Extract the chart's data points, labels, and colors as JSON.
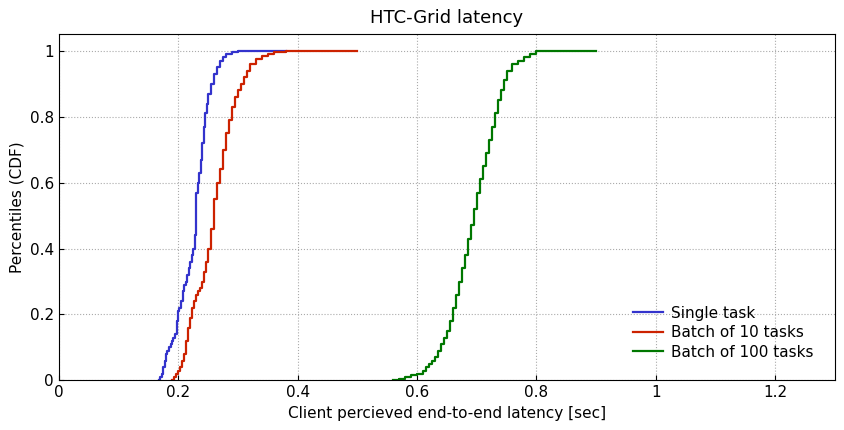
{
  "title": "HTC-Grid latency",
  "xlabel": "Client percieved end-to-end latency [sec]",
  "ylabel": "Percentiles (CDF)",
  "xlim": [
    0,
    1.3
  ],
  "ylim": [
    0,
    1.05
  ],
  "xticks": [
    0,
    0.2,
    0.4,
    0.6,
    0.8,
    1.0,
    1.2
  ],
  "yticks": [
    0,
    0.2,
    0.4,
    0.6,
    0.8,
    1.0
  ],
  "legend_labels": [
    "Single task",
    "Batch of 10 tasks",
    "Batch of 100 tasks"
  ],
  "line_colors": [
    "#3333cc",
    "#cc2200",
    "#007700"
  ],
  "series": {
    "single_task": {
      "x": [
        0.168,
        0.17,
        0.172,
        0.175,
        0.178,
        0.18,
        0.182,
        0.185,
        0.188,
        0.19,
        0.192,
        0.195,
        0.198,
        0.2,
        0.202,
        0.205,
        0.208,
        0.21,
        0.213,
        0.215,
        0.218,
        0.22,
        0.223,
        0.225,
        0.228,
        0.23,
        0.233,
        0.235,
        0.238,
        0.24,
        0.243,
        0.245,
        0.248,
        0.25,
        0.255,
        0.26,
        0.265,
        0.27,
        0.275,
        0.28,
        0.29,
        0.3,
        0.31,
        0.32,
        0.34,
        0.36,
        0.38
      ],
      "y": [
        0.0,
        0.01,
        0.02,
        0.04,
        0.06,
        0.08,
        0.09,
        0.1,
        0.11,
        0.12,
        0.13,
        0.14,
        0.18,
        0.21,
        0.22,
        0.24,
        0.27,
        0.29,
        0.3,
        0.32,
        0.34,
        0.36,
        0.38,
        0.4,
        0.44,
        0.57,
        0.6,
        0.63,
        0.67,
        0.72,
        0.77,
        0.81,
        0.84,
        0.87,
        0.9,
        0.93,
        0.95,
        0.97,
        0.98,
        0.99,
        0.995,
        0.998,
        0.999,
        1.0,
        1.0,
        1.0,
        1.0
      ]
    },
    "batch10": {
      "x": [
        0.19,
        0.193,
        0.196,
        0.2,
        0.203,
        0.206,
        0.21,
        0.213,
        0.216,
        0.22,
        0.223,
        0.226,
        0.23,
        0.233,
        0.236,
        0.24,
        0.243,
        0.246,
        0.25,
        0.255,
        0.26,
        0.265,
        0.27,
        0.275,
        0.28,
        0.285,
        0.29,
        0.295,
        0.3,
        0.305,
        0.31,
        0.315,
        0.32,
        0.33,
        0.34,
        0.35,
        0.36,
        0.38,
        0.4,
        0.42,
        0.45,
        0.5
      ],
      "y": [
        0.0,
        0.01,
        0.02,
        0.03,
        0.04,
        0.06,
        0.08,
        0.12,
        0.16,
        0.19,
        0.22,
        0.24,
        0.26,
        0.27,
        0.28,
        0.3,
        0.33,
        0.36,
        0.4,
        0.46,
        0.55,
        0.6,
        0.64,
        0.7,
        0.75,
        0.79,
        0.83,
        0.86,
        0.88,
        0.9,
        0.92,
        0.94,
        0.96,
        0.975,
        0.985,
        0.99,
        0.995,
        0.998,
        0.999,
        1.0,
        1.0,
        1.0
      ]
    },
    "batch100": {
      "x": [
        0.56,
        0.57,
        0.58,
        0.59,
        0.6,
        0.61,
        0.615,
        0.62,
        0.625,
        0.63,
        0.635,
        0.64,
        0.645,
        0.65,
        0.655,
        0.66,
        0.665,
        0.67,
        0.675,
        0.68,
        0.685,
        0.69,
        0.695,
        0.7,
        0.705,
        0.71,
        0.715,
        0.72,
        0.725,
        0.73,
        0.735,
        0.74,
        0.745,
        0.75,
        0.76,
        0.77,
        0.78,
        0.79,
        0.8,
        0.82,
        0.85,
        0.9
      ],
      "y": [
        0.0,
        0.005,
        0.01,
        0.015,
        0.02,
        0.03,
        0.04,
        0.05,
        0.06,
        0.07,
        0.09,
        0.11,
        0.13,
        0.15,
        0.18,
        0.22,
        0.26,
        0.3,
        0.34,
        0.38,
        0.43,
        0.47,
        0.52,
        0.57,
        0.61,
        0.65,
        0.69,
        0.73,
        0.77,
        0.81,
        0.85,
        0.88,
        0.91,
        0.94,
        0.96,
        0.97,
        0.98,
        0.99,
        1.0,
        1.0,
        1.0,
        1.0
      ]
    }
  },
  "background_color": "#ffffff",
  "title_fontsize": 13,
  "label_fontsize": 11,
  "tick_fontsize": 11,
  "legend_fontsize": 11,
  "linewidth": 1.6
}
